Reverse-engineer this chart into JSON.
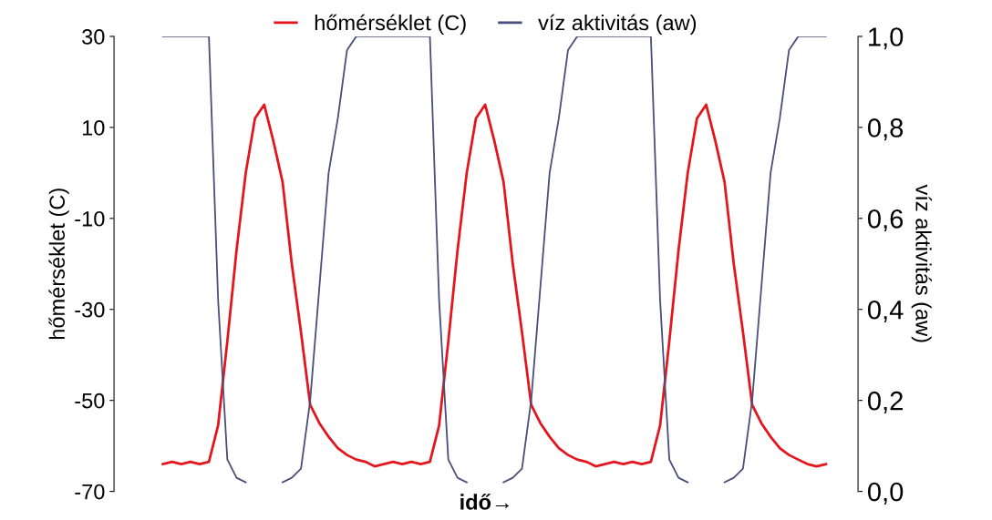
{
  "chart_data": {
    "type": "line",
    "categories": [
      null,
      null,
      null,
      null,
      null,
      null,
      null,
      null,
      null,
      null,
      null,
      null,
      null,
      null,
      null,
      null,
      null,
      null,
      null,
      null,
      null,
      null,
      null,
      null,
      null,
      null,
      null,
      null,
      null,
      null,
      null,
      null,
      null,
      null,
      null,
      null,
      null,
      null,
      null,
      null,
      null,
      null,
      null,
      null,
      null,
      null,
      null,
      null,
      null,
      null,
      null,
      null,
      null,
      null,
      null,
      null,
      null,
      null,
      null,
      null,
      null,
      null,
      null,
      null,
      null,
      null,
      null,
      null,
      null,
      null,
      null,
      null,
      null
    ],
    "series": [
      {
        "name": "hőmérséklet (C)",
        "color": "#e3161e",
        "values": [
          -64,
          -63.5,
          -64,
          -63.5,
          -64,
          -63.5,
          -55.5,
          -37,
          -17,
          0,
          12,
          15,
          7,
          -2,
          -20,
          -35,
          -51,
          -55,
          -58,
          -60.5,
          -62,
          -63,
          -63.5,
          -64.5,
          -64,
          -63.5,
          -64,
          -63.5,
          -64,
          -63.5,
          -55.5,
          -37,
          -17,
          0,
          12,
          15,
          7,
          -2,
          -20,
          -35,
          -51,
          -55,
          -58,
          -60.5,
          -62,
          -63,
          -63.5,
          -64.5,
          -64,
          -63.5,
          -64,
          -63.5,
          -64,
          -63.5,
          -55.5,
          -37,
          -17,
          0,
          12,
          15,
          7,
          -2,
          -20,
          -35,
          -51,
          -55,
          -58,
          -60.5,
          -62,
          -63,
          -64,
          -64.5,
          -64
        ]
      },
      {
        "name": "víz aktivitás (aw)",
        "color": "#4a4f7a",
        "axis": "y2",
        "values": [
          1,
          1,
          1,
          1,
          1,
          1,
          0.42,
          0.07,
          0.03,
          0.02,
          null,
          null,
          null,
          0.02,
          0.03,
          0.05,
          0.2,
          0.45,
          0.7,
          0.82,
          0.97,
          1,
          1,
          1,
          1,
          1,
          1,
          1,
          1,
          1,
          0.42,
          0.07,
          0.03,
          0.02,
          null,
          null,
          null,
          0.02,
          0.03,
          0.05,
          0.2,
          0.45,
          0.7,
          0.82,
          0.97,
          1,
          1,
          1,
          1,
          1,
          1,
          1,
          1,
          1,
          0.42,
          0.07,
          0.03,
          0.02,
          null,
          null,
          null,
          0.02,
          0.03,
          0.05,
          0.2,
          0.45,
          0.7,
          0.82,
          0.97,
          1,
          1,
          1,
          1
        ]
      }
    ],
    "xlabel": "idő→",
    "ylabel": "hőmérséklet (C)",
    "y2label": "víz aktivitás (aw)",
    "ylim": [
      -70,
      30
    ],
    "yticks": [
      -70,
      -50,
      -30,
      -10,
      10,
      30
    ],
    "y2lim": [
      0,
      1
    ],
    "y2ticks": [
      {
        "value": 0,
        "label": "0,0"
      },
      {
        "value": 0.2,
        "label": "0,2"
      },
      {
        "value": 0.4,
        "label": "0,4"
      },
      {
        "value": 0.6,
        "label": "0,6"
      },
      {
        "value": 0.8,
        "label": "0,8"
      },
      {
        "value": 1,
        "label": "1,0"
      }
    ],
    "tick_labels": "y",
    "legend": "top",
    "grid": false,
    "marker": "none",
    "line_style": "solid"
  }
}
